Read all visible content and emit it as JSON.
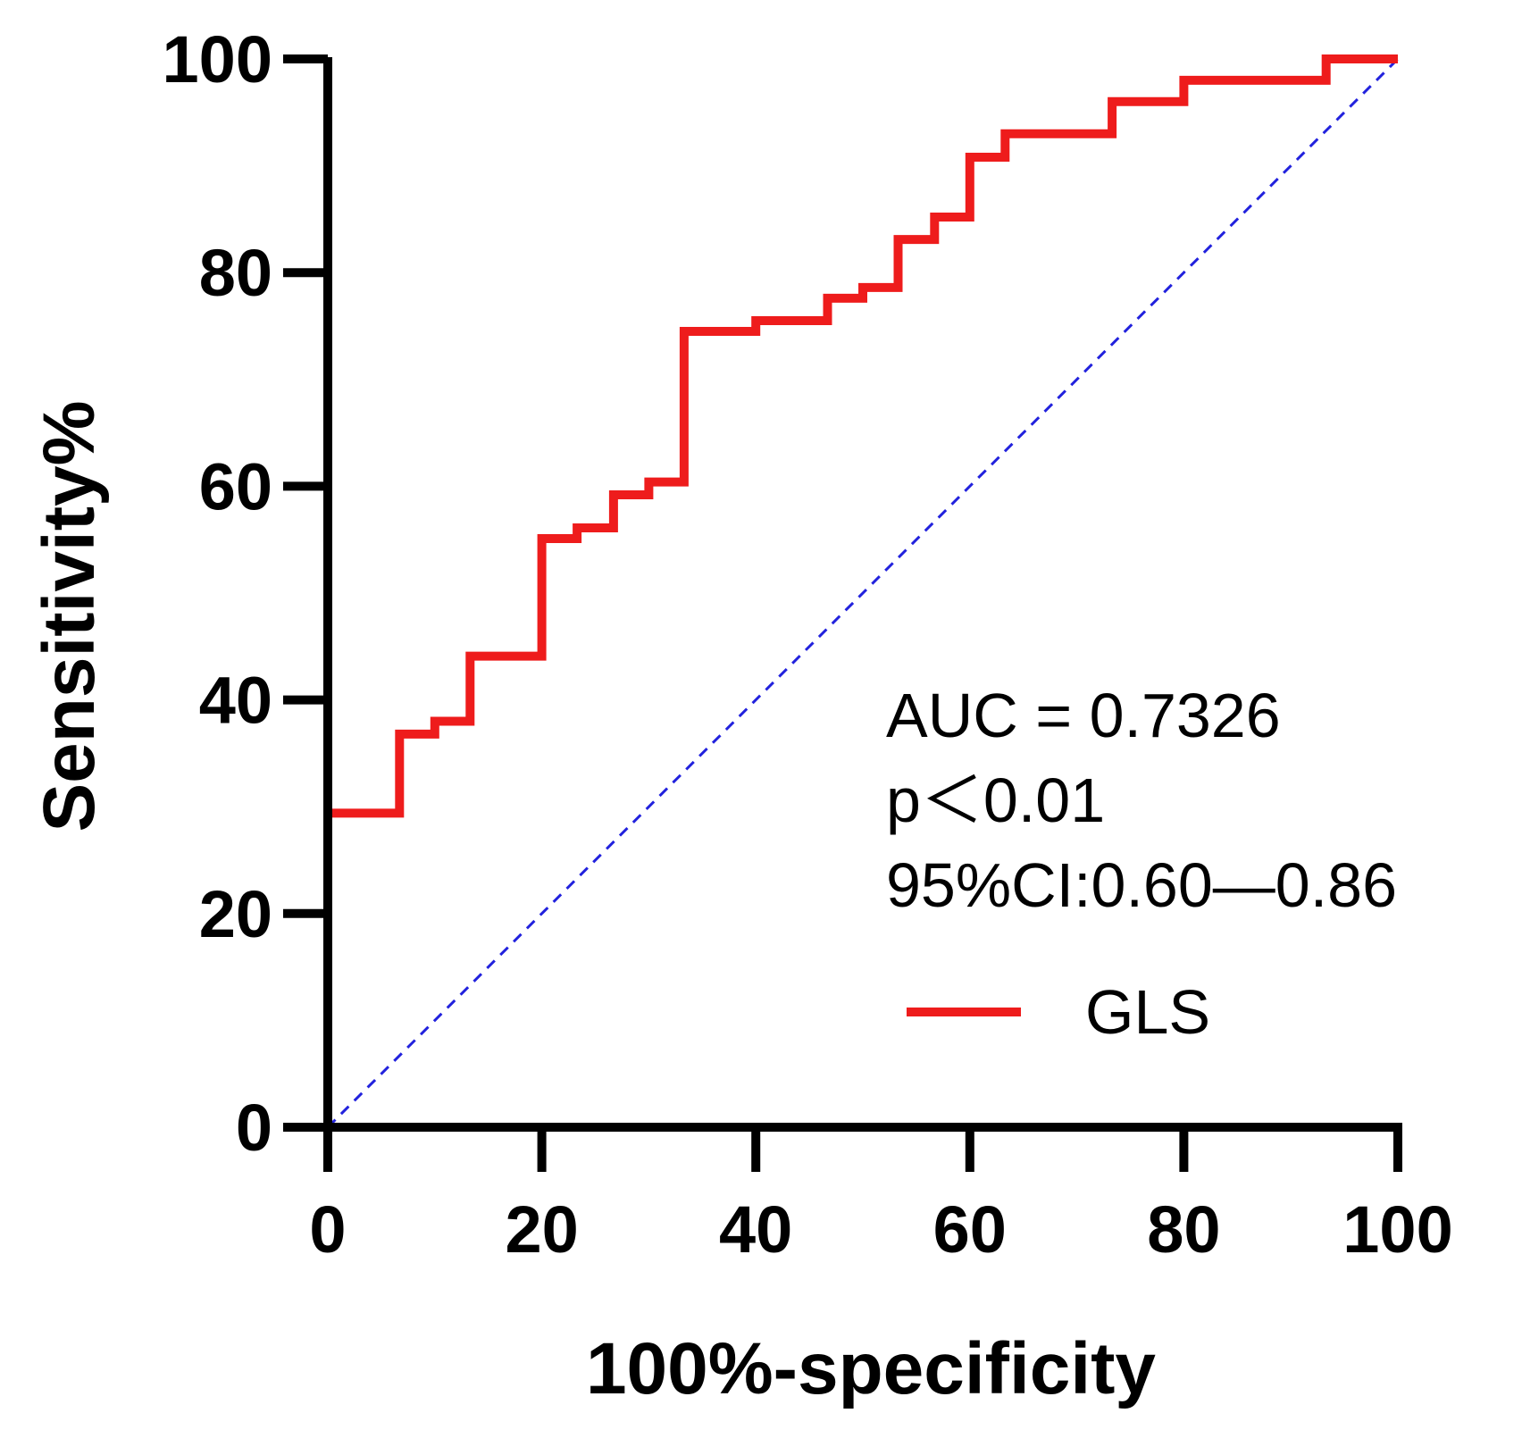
{
  "chart_data": {
    "type": "line",
    "title": "",
    "xlabel": "100%-specificity",
    "ylabel": "Sensitivity%",
    "xlim": [
      0,
      100
    ],
    "ylim": [
      0,
      100
    ],
    "xticks": [
      "0",
      "20",
      "40",
      "60",
      "80",
      "100"
    ],
    "yticks": [
      "0",
      "20",
      "40",
      "60",
      "80",
      "100"
    ],
    "grid": false,
    "legend_position": "right",
    "series": [
      {
        "name": "GLS",
        "color": "#ee1c1c",
        "style": "step",
        "x": [
          0,
          0,
          6.7,
          6.7,
          10,
          10,
          13.3,
          13.3,
          20,
          20,
          23.3,
          23.3,
          26.7,
          26.7,
          30,
          30,
          33.3,
          33.3,
          40,
          40,
          46.7,
          46.7,
          50,
          50,
          53.3,
          53.3,
          56.7,
          56.7,
          60,
          60,
          63.3,
          63.3,
          73.3,
          73.3,
          80,
          80,
          93.3,
          93.3,
          100
        ],
        "y": [
          0,
          29.4,
          29.4,
          36.8,
          36.8,
          38,
          38,
          44.1,
          44.1,
          55.1,
          55.1,
          56.1,
          56.1,
          59.2,
          59.2,
          60.4,
          60.4,
          74.5,
          74.5,
          75.5,
          75.5,
          77.6,
          77.6,
          78.6,
          78.6,
          83.1,
          83.1,
          85.2,
          85.2,
          90.8,
          90.8,
          93,
          93,
          96,
          96,
          98,
          98,
          100,
          100
        ]
      },
      {
        "name": "reference",
        "color": "#2222dd",
        "style": "dashed",
        "x": [
          0,
          100
        ],
        "y": [
          0,
          100
        ]
      }
    ],
    "annotations": [
      "AUC = 0.7326",
      "p＜0.01",
      "95%CI:0.60—0.86"
    ],
    "legend": [
      {
        "label": "GLS",
        "color": "#ee1c1c"
      }
    ]
  }
}
